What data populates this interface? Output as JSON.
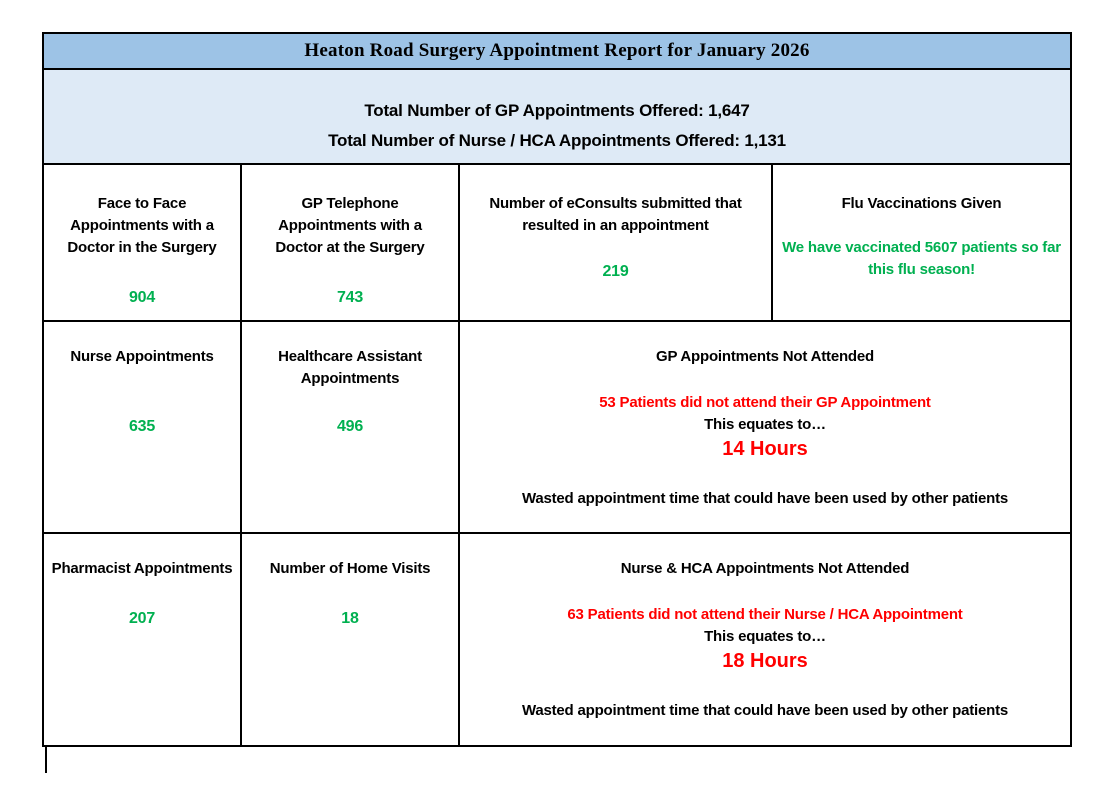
{
  "report": {
    "title": "Heaton Road Surgery Appointment Report for January 2026",
    "summary": {
      "gp_offered": "Total Number of GP Appointments Offered: 1,647",
      "nurse_hca_offered": "Total Number of Nurse / HCA Appointments Offered: 1,131"
    },
    "cells": {
      "face_to_face": {
        "label": "Face to Face Appointments with a Doctor in the Surgery",
        "value": "904"
      },
      "gp_telephone": {
        "label": "GP Telephone Appointments with a Doctor at the Surgery",
        "value": "743"
      },
      "econsults": {
        "label": "Number of eConsults submitted that resulted in an appointment",
        "value": "219"
      },
      "flu": {
        "label": "Flu Vaccinations Given",
        "note": "We have vaccinated 5607 patients so far this flu season!"
      },
      "nurse": {
        "label": "Nurse Appointments",
        "value": "635"
      },
      "hca": {
        "label": "Healthcare Assistant Appointments",
        "value": "496"
      },
      "gp_dna": {
        "title": "GP Appointments Not Attended",
        "missed": "53 Patients did not attend their GP Appointment",
        "equates": "This equates to…",
        "hours": "14 Hours",
        "wasted": "Wasted appointment time that could have been used by other patients"
      },
      "pharmacist": {
        "label": "Pharmacist Appointments",
        "value": "207"
      },
      "home_visits": {
        "label": "Number of Home Visits",
        "value": "18"
      },
      "nurse_dna": {
        "title": "Nurse & HCA Appointments Not Attended",
        "missed": "63 Patients did not attend their Nurse / HCA Appointment",
        "equates": "This equates to…",
        "hours": "18 Hours",
        "wasted": "Wasted appointment time that could have been used by other patients"
      }
    },
    "colors": {
      "header_bg": "#9DC3E6",
      "subheader_bg": "#DEEAF6",
      "positive": "#00B050",
      "negative": "#FF0000"
    }
  }
}
